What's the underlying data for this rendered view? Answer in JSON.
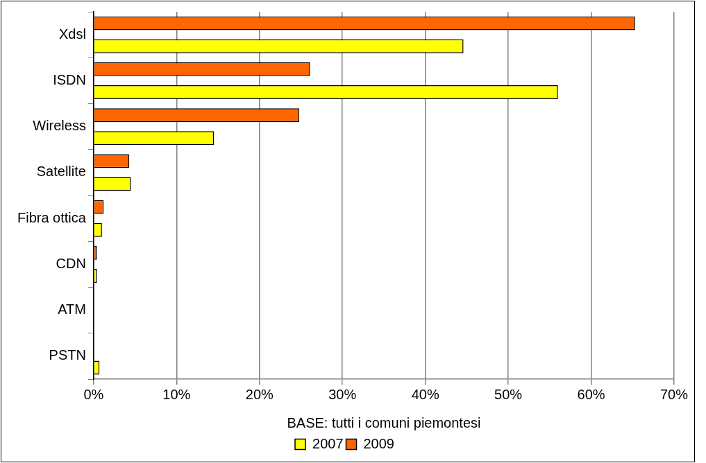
{
  "chart_data": {
    "type": "bar",
    "orientation": "horizontal",
    "xlabel": "BASE: tutti i comuni piemontesi",
    "categories": [
      "Xdsl",
      "ISDN",
      "Wireless",
      "Satellite",
      "Fibra ottica",
      "CDN",
      "ATM",
      "PSTN"
    ],
    "series": [
      {
        "name": "2007",
        "color": "#ffff00",
        "values": [
          44.6,
          56.0,
          14.5,
          4.5,
          1.0,
          0.4,
          0,
          0.7
        ]
      },
      {
        "name": "2009",
        "color": "#ff6600",
        "values": [
          65.3,
          26.1,
          24.8,
          4.3,
          1.2,
          0.4,
          0,
          0
        ]
      }
    ],
    "xlim": [
      0,
      70
    ],
    "xticks": [
      {
        "value": 0,
        "label": "0%"
      },
      {
        "value": 10,
        "label": "10%"
      },
      {
        "value": 20,
        "label": "20%"
      },
      {
        "value": 30,
        "label": "30%"
      },
      {
        "value": 40,
        "label": "40%"
      },
      {
        "value": 50,
        "label": "50%"
      },
      {
        "value": 60,
        "label": "60%"
      },
      {
        "value": 70,
        "label": "70%"
      }
    ],
    "grid": "x",
    "legend": "bottom"
  }
}
